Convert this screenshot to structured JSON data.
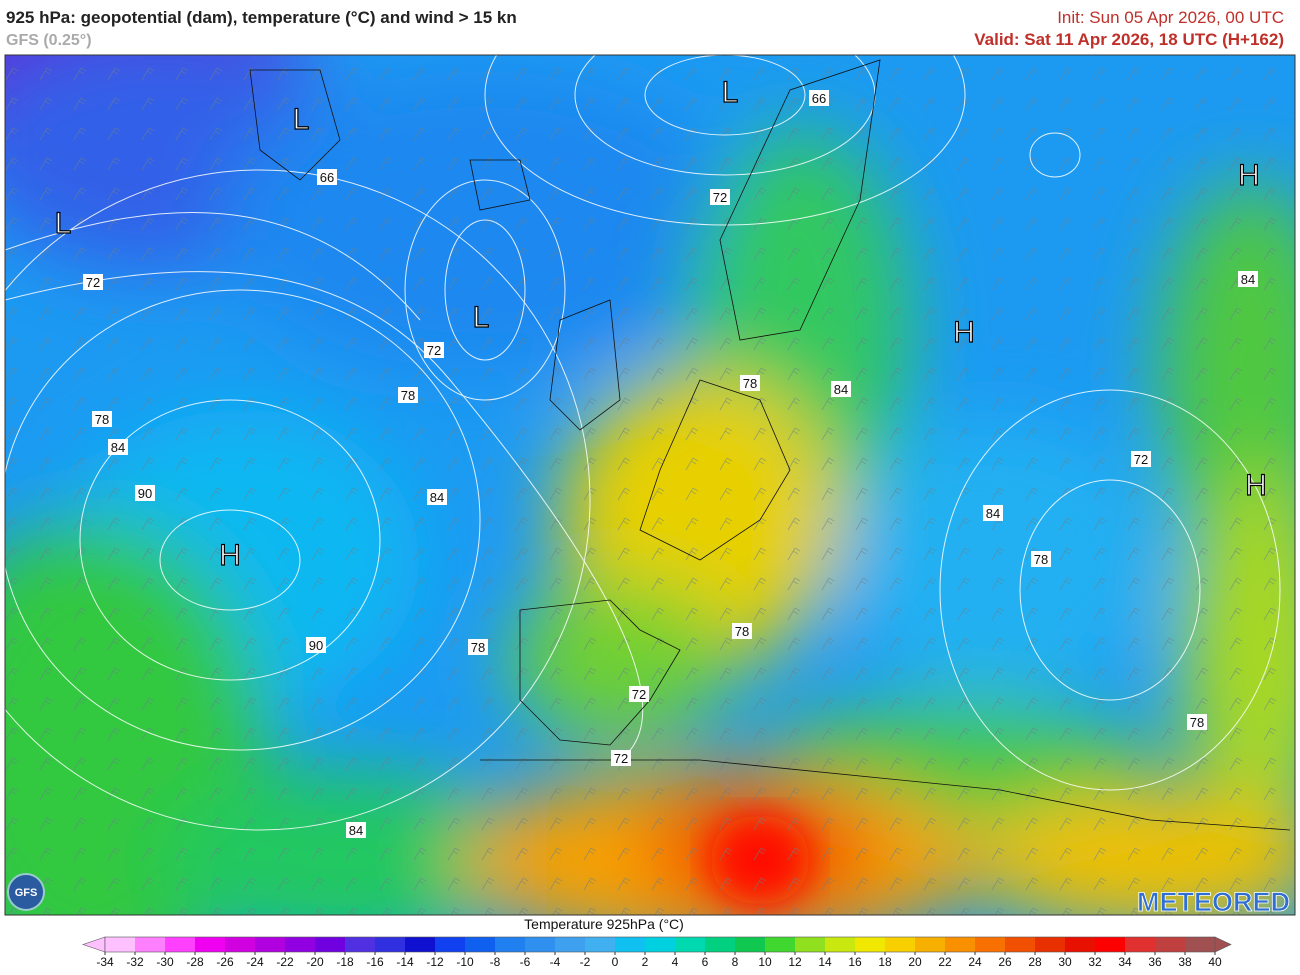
{
  "header": {
    "title": "925 hPa: geopotential (dam), temperature (°C) and wind > 15 kn",
    "model": "GFS (0.25°)",
    "init": "Init: Sun 05 Apr 2026, 00 UTC",
    "valid": "Valid: Sat 11 Apr 2026, 18 UTC (H+162)"
  },
  "map": {
    "pressure_centers": [
      "L",
      "L",
      "L",
      "L",
      "H",
      "H",
      "H",
      "H"
    ],
    "contour_labels": [
      66,
      66,
      72,
      72,
      72,
      78,
      78,
      84,
      84,
      78,
      84,
      90,
      84,
      72,
      84,
      78,
      78,
      90,
      78,
      72,
      72,
      78,
      84
    ],
    "logo": "METEORED",
    "model_badge": "GFS"
  },
  "colorbar": {
    "title": "Temperature 925hPa (°C)",
    "ticks": [
      -34,
      -32,
      -30,
      -28,
      -26,
      -24,
      -22,
      -20,
      -18,
      -16,
      -14,
      -12,
      -10,
      -8,
      -6,
      -4,
      -2,
      0,
      2,
      4,
      6,
      8,
      10,
      12,
      14,
      16,
      18,
      20,
      22,
      24,
      26,
      28,
      30,
      32,
      34,
      36,
      38,
      40
    ],
    "colors": [
      "#ffc0ff",
      "#ff80ff",
      "#ff40ff",
      "#f000f0",
      "#d000e0",
      "#b000e0",
      "#9000e0",
      "#7000e0",
      "#5030e0",
      "#3030e0",
      "#1010d0",
      "#1040f0",
      "#1060f0",
      "#2080f0",
      "#3090f0",
      "#40a0f0",
      "#40b0f0",
      "#10c0f0",
      "#00d0e0",
      "#00d8b0",
      "#00d080",
      "#10c850",
      "#40d830",
      "#90e020",
      "#c8e810",
      "#f0e800",
      "#f8d000",
      "#f8b000",
      "#f89000",
      "#f87000",
      "#f05000",
      "#e83000",
      "#e81000",
      "#ff0000",
      "#e03030",
      "#c04040",
      "#a05050"
    ]
  }
}
